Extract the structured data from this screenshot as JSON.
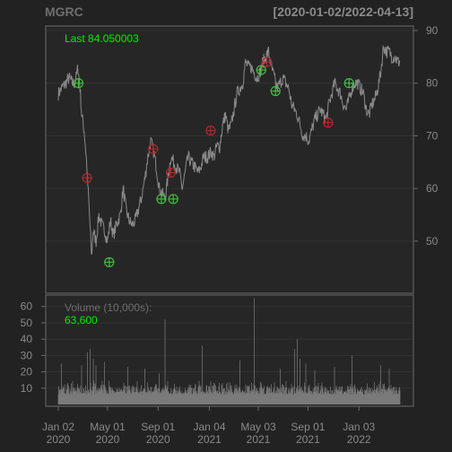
{
  "header": {
    "symbol": "MGRC",
    "date_range": "[2020-01-02/2022-04-13]"
  },
  "colors": {
    "background": "#222222",
    "panel": "#262626",
    "grid": "#333333",
    "border": "#6a6a6a",
    "price_line": "#8a8a8a",
    "volume_bar": "#8a8a8a",
    "buy_marker": "#3fbf3f",
    "sell_marker": "#b02a2a",
    "last_text": "#00ee00",
    "label_text": "#8a8a8a"
  },
  "chart_data": [
    {
      "type": "line",
      "title": "MGRC",
      "date_range": "[2020-01-02/2022-04-13]",
      "last_label": "Last 84.050003",
      "ylim": [
        43,
        90
      ],
      "yticks": [
        50,
        60,
        70,
        80,
        90
      ],
      "grid": true,
      "x_ticks": [
        {
          "date": "2020-01-02",
          "line1": "Jan 02",
          "line2": "2020"
        },
        {
          "date": "2020-05-01",
          "line1": "May 01",
          "line2": "2020"
        },
        {
          "date": "2020-09-01",
          "line1": "Sep 01",
          "line2": "2020"
        },
        {
          "date": "2021-01-04",
          "line1": "Jan 04",
          "line2": "2021"
        },
        {
          "date": "2021-05-03",
          "line1": "May 03",
          "line2": "2021"
        },
        {
          "date": "2021-09-01",
          "line1": "Sep 01",
          "line2": "2021"
        },
        {
          "date": "2022-01-03",
          "line1": "Jan 03",
          "line2": "2022"
        }
      ],
      "series": [
        {
          "points": [
            [
              "2020-01-02",
              78
            ],
            [
              "2020-01-10",
              79
            ],
            [
              "2020-01-20",
              80
            ],
            [
              "2020-01-28",
              81
            ],
            [
              "2020-02-05",
              80
            ],
            [
              "2020-02-12",
              80
            ],
            [
              "2020-02-19",
              83
            ],
            [
              "2020-02-24",
              79
            ],
            [
              "2020-02-28",
              74
            ],
            [
              "2020-03-05",
              71
            ],
            [
              "2020-03-10",
              66
            ],
            [
              "2020-03-13",
              62
            ],
            [
              "2020-03-18",
              55
            ],
            [
              "2020-03-23",
              47
            ],
            [
              "2020-03-27",
              52
            ],
            [
              "2020-04-03",
              50
            ],
            [
              "2020-04-10",
              55
            ],
            [
              "2020-04-17",
              53
            ],
            [
              "2020-04-24",
              52
            ],
            [
              "2020-05-01",
              50
            ],
            [
              "2020-05-08",
              54
            ],
            [
              "2020-05-15",
              51
            ],
            [
              "2020-05-22",
              53
            ],
            [
              "2020-06-01",
              55
            ],
            [
              "2020-06-08",
              60
            ],
            [
              "2020-06-15",
              56
            ],
            [
              "2020-06-22",
              54
            ],
            [
              "2020-06-30",
              53
            ],
            [
              "2020-07-08",
              54
            ],
            [
              "2020-07-15",
              56
            ],
            [
              "2020-07-22",
              58
            ],
            [
              "2020-07-31",
              62
            ],
            [
              "2020-08-07",
              66
            ],
            [
              "2020-08-14",
              69
            ],
            [
              "2020-08-21",
              67
            ],
            [
              "2020-08-28",
              64
            ],
            [
              "2020-09-04",
              60
            ],
            [
              "2020-09-11",
              59
            ],
            [
              "2020-09-18",
              58
            ],
            [
              "2020-09-25",
              62
            ],
            [
              "2020-10-02",
              66
            ],
            [
              "2020-10-09",
              65
            ],
            [
              "2020-10-16",
              64
            ],
            [
              "2020-10-23",
              63
            ],
            [
              "2020-10-30",
              60
            ],
            [
              "2020-11-06",
              63
            ],
            [
              "2020-11-13",
              66
            ],
            [
              "2020-11-20",
              65
            ],
            [
              "2020-11-30",
              64
            ],
            [
              "2020-12-07",
              63
            ],
            [
              "2020-12-14",
              64
            ],
            [
              "2020-12-21",
              66
            ],
            [
              "2020-12-31",
              66
            ],
            [
              "2021-01-08",
              67
            ],
            [
              "2021-01-15",
              66
            ],
            [
              "2021-01-22",
              68
            ],
            [
              "2021-01-29",
              68
            ],
            [
              "2021-02-05",
              72
            ],
            [
              "2021-02-12",
              74
            ],
            [
              "2021-02-19",
              71
            ],
            [
              "2021-02-26",
              72
            ],
            [
              "2021-03-05",
              75
            ],
            [
              "2021-03-12",
              78
            ],
            [
              "2021-03-19",
              79
            ],
            [
              "2021-03-26",
              80
            ],
            [
              "2021-04-02",
              84
            ],
            [
              "2021-04-09",
              83
            ],
            [
              "2021-04-16",
              83
            ],
            [
              "2021-04-23",
              82
            ],
            [
              "2021-04-30",
              81
            ],
            [
              "2021-05-07",
              82
            ],
            [
              "2021-05-14",
              84
            ],
            [
              "2021-05-21",
              85
            ],
            [
              "2021-05-28",
              86
            ],
            [
              "2021-06-04",
              83
            ],
            [
              "2021-06-11",
              81
            ],
            [
              "2021-06-18",
              79
            ],
            [
              "2021-06-25",
              80
            ],
            [
              "2021-07-02",
              81
            ],
            [
              "2021-07-09",
              80
            ],
            [
              "2021-07-16",
              79
            ],
            [
              "2021-07-23",
              76
            ],
            [
              "2021-07-30",
              75
            ],
            [
              "2021-08-06",
              74
            ],
            [
              "2021-08-13",
              72
            ],
            [
              "2021-08-20",
              70
            ],
            [
              "2021-08-27",
              70
            ],
            [
              "2021-09-03",
              69
            ],
            [
              "2021-09-10",
              71
            ],
            [
              "2021-09-17",
              73
            ],
            [
              "2021-09-24",
              74
            ],
            [
              "2021-10-01",
              75
            ],
            [
              "2021-10-08",
              74
            ],
            [
              "2021-10-15",
              73
            ],
            [
              "2021-10-22",
              76
            ],
            [
              "2021-10-29",
              78
            ],
            [
              "2021-11-05",
              80
            ],
            [
              "2021-11-12",
              79
            ],
            [
              "2021-11-19",
              78
            ],
            [
              "2021-11-26",
              76
            ],
            [
              "2021-12-03",
              75
            ],
            [
              "2021-12-10",
              77
            ],
            [
              "2021-12-17",
              79
            ],
            [
              "2021-12-24",
              80
            ],
            [
              "2021-12-31",
              80
            ],
            [
              "2022-01-07",
              79
            ],
            [
              "2022-01-14",
              78
            ],
            [
              "2022-01-21",
              75
            ],
            [
              "2022-01-28",
              74
            ],
            [
              "2022-02-04",
              76
            ],
            [
              "2022-02-11",
              77
            ],
            [
              "2022-02-18",
              79
            ],
            [
              "2022-02-25",
              82
            ],
            [
              "2022-03-04",
              87
            ],
            [
              "2022-03-11",
              86
            ],
            [
              "2022-03-18",
              86
            ],
            [
              "2022-03-25",
              85
            ],
            [
              "2022-04-01",
              85
            ],
            [
              "2022-04-08",
              84
            ],
            [
              "2022-04-13",
              84.05
            ]
          ]
        }
      ],
      "buy_signals": [
        [
          "2020-02-20",
          80
        ],
        [
          "2020-05-05",
          46
        ],
        [
          "2020-09-09",
          58
        ],
        [
          "2020-10-08",
          58
        ],
        [
          "2021-05-10",
          82.5
        ],
        [
          "2021-06-14",
          78.5
        ],
        [
          "2021-12-10",
          80
        ]
      ],
      "sell_signals": [
        [
          "2020-03-12",
          62
        ],
        [
          "2020-08-20",
          67.5
        ],
        [
          "2020-10-02",
          63
        ],
        [
          "2021-01-07",
          71
        ],
        [
          "2021-05-24",
          84
        ],
        [
          "2021-10-20",
          72.5
        ]
      ]
    },
    {
      "type": "bar",
      "title": "Volume (10,000s):",
      "last_value": "63,600",
      "ylim": [
        0,
        67
      ],
      "yticks": [
        10,
        20,
        30,
        40,
        50,
        60
      ],
      "grid": true,
      "spikes": [
        [
          "2020-01-10",
          25
        ],
        [
          "2020-02-28",
          24
        ],
        [
          "2020-03-13",
          32
        ],
        [
          "2020-03-20",
          34
        ],
        [
          "2020-03-27",
          28
        ],
        [
          "2020-04-03",
          24
        ],
        [
          "2020-04-24",
          26
        ],
        [
          "2020-06-19",
          23
        ],
        [
          "2020-07-31",
          22
        ],
        [
          "2020-09-04",
          19
        ],
        [
          "2020-09-18",
          52
        ],
        [
          "2020-12-18",
          36
        ],
        [
          "2021-03-19",
          27
        ],
        [
          "2021-04-23",
          65
        ],
        [
          "2021-06-25",
          22
        ],
        [
          "2021-07-30",
          34
        ],
        [
          "2021-08-06",
          40
        ],
        [
          "2021-08-13",
          28
        ],
        [
          "2021-08-27",
          25
        ],
        [
          "2021-09-17",
          21
        ],
        [
          "2021-11-05",
          23
        ],
        [
          "2021-12-17",
          30
        ],
        [
          "2022-02-25",
          24
        ],
        [
          "2022-03-18",
          22
        ]
      ],
      "baseline": [
        6,
        12
      ]
    }
  ]
}
